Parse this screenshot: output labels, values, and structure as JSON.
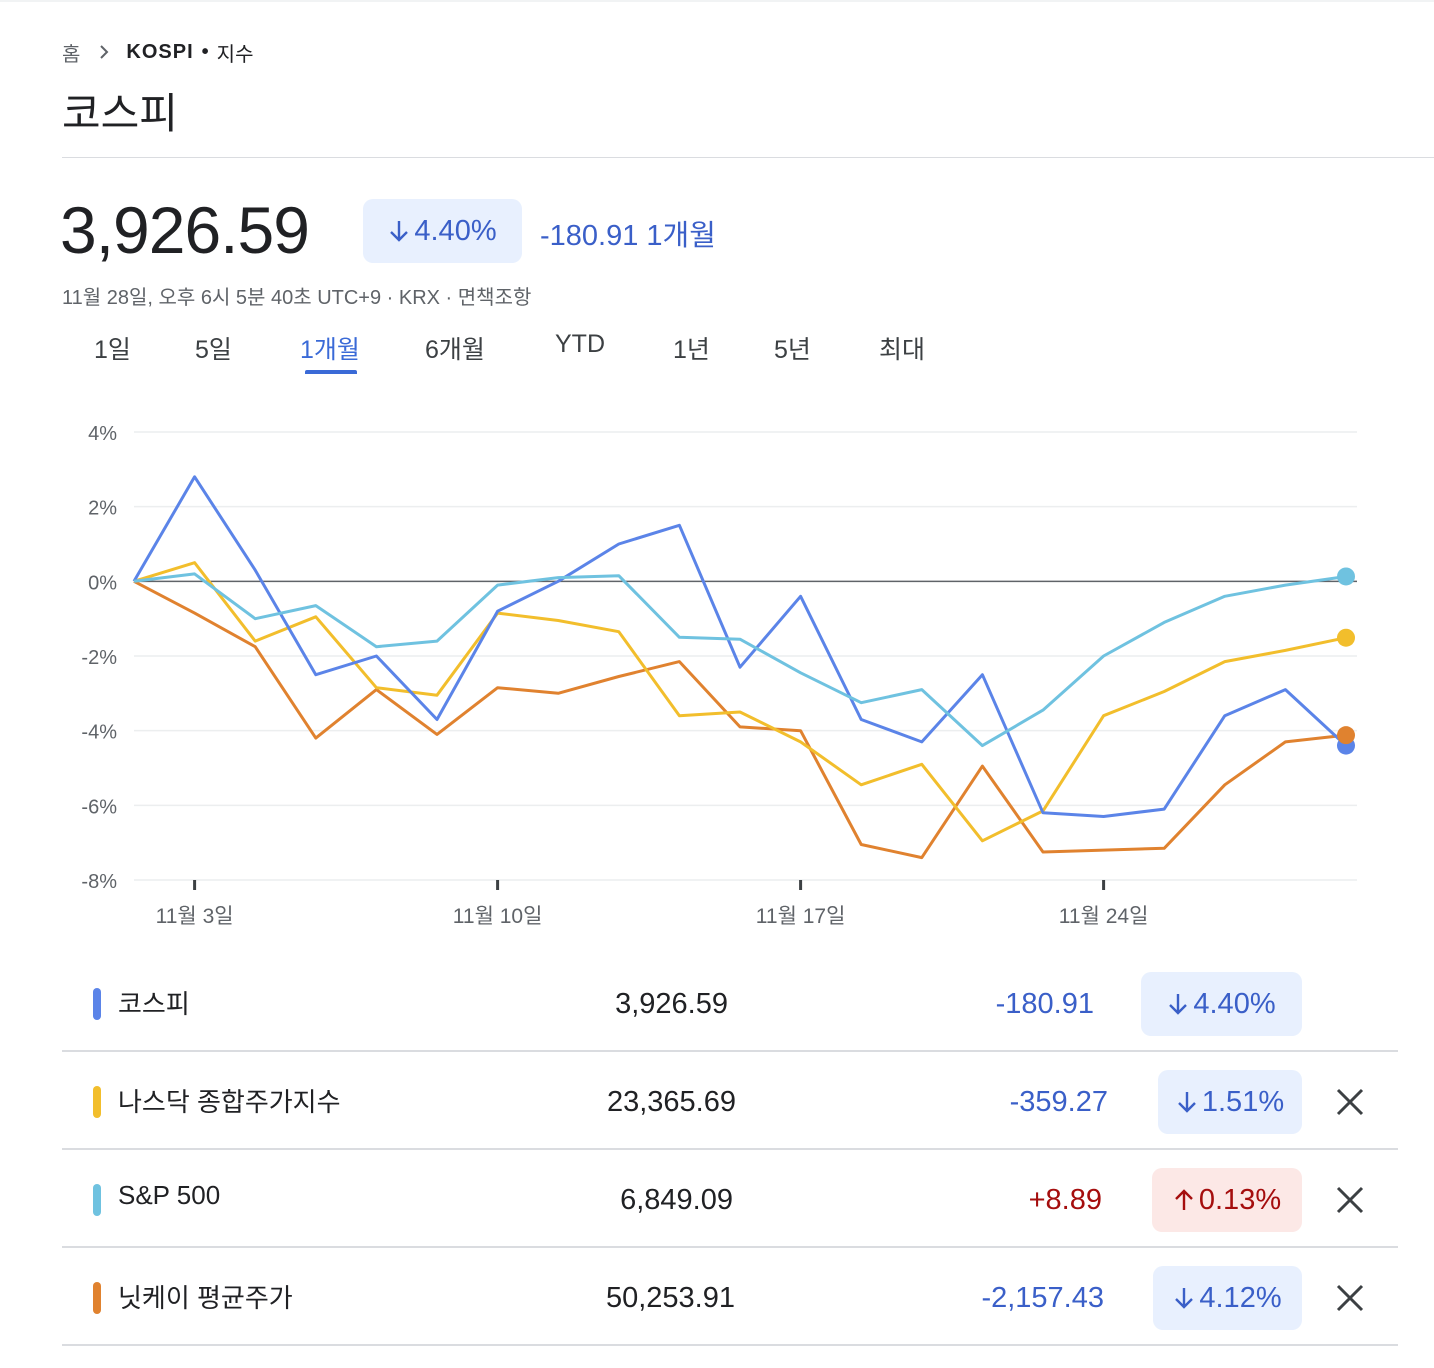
{
  "breadcrumb": {
    "home": "홈",
    "ticker": "KOSPI",
    "separator": "•",
    "kind": "지수"
  },
  "page_title": "코스피",
  "quote": {
    "price": "3,926.59",
    "change_percent": "4.40%",
    "change_direction": "down",
    "change_abs": "-180.91",
    "period_label": "1개월",
    "timestamp": "11월 28일, 오후 6시 5분 40초 UTC+9 · KRX · 면책조항"
  },
  "range_tabs": [
    {
      "label": "1일",
      "active": false
    },
    {
      "label": "5일",
      "active": false
    },
    {
      "label": "1개월",
      "active": true
    },
    {
      "label": "6개월",
      "active": false
    },
    {
      "label": "YTD",
      "active": false
    },
    {
      "label": "1년",
      "active": false
    },
    {
      "label": "5년",
      "active": false
    },
    {
      "label": "최대",
      "active": false
    }
  ],
  "chart_data": {
    "type": "line",
    "title": "",
    "xlabel": "",
    "ylabel": "",
    "ylim": [
      -8,
      4
    ],
    "yticks": [
      4,
      2,
      0,
      -2,
      -4,
      -6,
      -8
    ],
    "ytick_labels": [
      "4%",
      "2%",
      "0%",
      "-2%",
      "-4%",
      "-6%",
      "-8%"
    ],
    "xtick_positions": [
      1,
      6,
      11,
      16
    ],
    "xtick_labels": [
      "11월 3일",
      "11월 10일",
      "11월 17일",
      "11월 24일"
    ],
    "x": [
      0,
      1,
      2,
      3,
      4,
      5,
      6,
      7,
      8,
      9,
      10,
      11,
      12,
      13,
      14,
      15,
      16,
      17,
      18,
      19,
      20
    ],
    "series": [
      {
        "name": "코스피",
        "color": "#5b84e8",
        "values": [
          0,
          2.8,
          0.3,
          -2.5,
          -2.0,
          -3.7,
          -0.8,
          0.0,
          1.0,
          1.5,
          -2.3,
          -0.4,
          -3.7,
          -4.3,
          -2.5,
          -6.2,
          -6.3,
          -6.1,
          -3.6,
          -2.9,
          -4.4
        ]
      },
      {
        "name": "나스닥 종합주가지수",
        "color": "#f2be2c",
        "values": [
          0,
          0.5,
          -1.6,
          -0.95,
          -2.85,
          -3.05,
          -0.85,
          -1.05,
          -1.35,
          -3.6,
          -3.5,
          -4.3,
          -5.45,
          -4.9,
          -6.95,
          -6.15,
          -3.6,
          -2.95,
          -2.15,
          -1.85,
          -1.51
        ]
      },
      {
        "name": "S&P 500",
        "color": "#6fc2e0",
        "values": [
          0,
          0.2,
          -1.0,
          -0.65,
          -1.75,
          -1.6,
          -0.1,
          0.1,
          0.15,
          -1.5,
          -1.55,
          -2.45,
          -3.25,
          -2.9,
          -4.4,
          -3.45,
          -2.0,
          -1.1,
          -0.4,
          -0.1,
          0.13
        ]
      },
      {
        "name": "닛케이 평균주가",
        "color": "#e0822f",
        "values": [
          0,
          -0.85,
          -1.75,
          -4.2,
          -2.9,
          -4.1,
          -2.85,
          -3.0,
          -2.55,
          -2.15,
          -3.9,
          -4.0,
          -7.05,
          -7.4,
          -4.95,
          -7.25,
          -7.2,
          -7.15,
          -5.45,
          -4.3,
          -4.12
        ]
      }
    ]
  },
  "comparisons": [
    {
      "name": "코스피",
      "color": "#5b84e8",
      "value": "3,926.59",
      "change_abs": "-180.91",
      "change_percent": "4.40%",
      "direction": "down",
      "removable": false
    },
    {
      "name": "나스닥 종합주가지수",
      "color": "#f2be2c",
      "value": "23,365.69",
      "change_abs": "-359.27",
      "change_percent": "1.51%",
      "direction": "down",
      "removable": true
    },
    {
      "name": "S&P 500",
      "color": "#6fc2e0",
      "value": "6,849.09",
      "change_abs": "+8.89",
      "change_percent": "0.13%",
      "direction": "up",
      "removable": true
    },
    {
      "name": "닛케이 평균주가",
      "color": "#e0822f",
      "value": "50,253.91",
      "change_abs": "-2,157.43",
      "change_percent": "4.12%",
      "direction": "down",
      "removable": true
    }
  ]
}
